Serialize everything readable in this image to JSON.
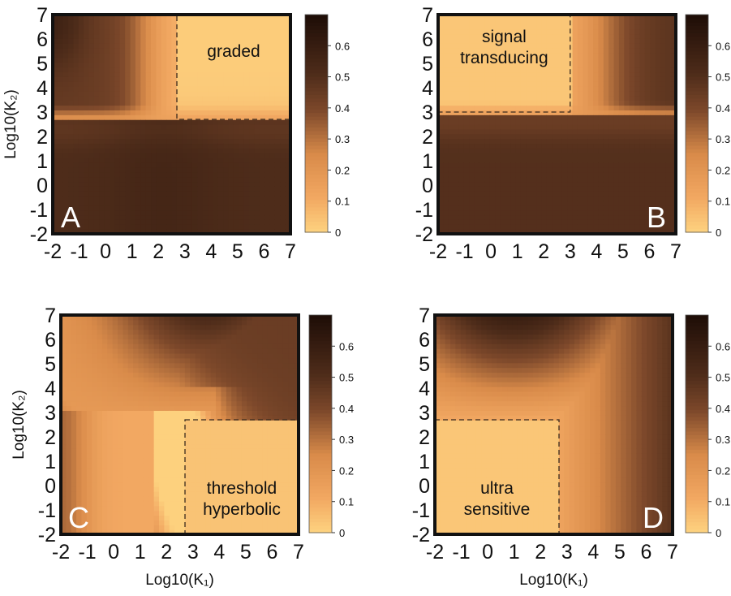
{
  "figure": {
    "colors": {
      "low": "#fdd17e",
      "mid": "#d98b4a",
      "high": "#1c0c06",
      "frame": "#111111",
      "box_line": "#3a2a1e"
    }
  },
  "chart_data": [
    {
      "type": "heatmap",
      "panel_label": "A",
      "region_label": "graded",
      "xlabel": "",
      "ylabel": "Log10(K₂)",
      "xlim": [
        -2,
        7
      ],
      "ylim": [
        -2,
        7
      ],
      "x_ticks": [
        "-2",
        "-1",
        "0",
        "1",
        "2",
        "3",
        "4",
        "5",
        "6",
        "7"
      ],
      "y_ticks": [
        "-2",
        "-1",
        "0",
        "1",
        "2",
        "3",
        "4",
        "5",
        "6",
        "7"
      ],
      "dashed_region": {
        "x": [
          2.7,
          7
        ],
        "y": [
          2.7,
          7
        ]
      },
      "colorbar": {
        "range": [
          0,
          0.7
        ],
        "ticks": [
          "0",
          "0.1",
          "0.2",
          "0.3",
          "0.4",
          "0.5",
          "0.6"
        ]
      }
    },
    {
      "type": "heatmap",
      "panel_label": "B",
      "region_label": [
        "signal",
        "transducing"
      ],
      "xlabel": "",
      "ylabel": "",
      "xlim": [
        -2,
        7
      ],
      "ylim": [
        -2,
        7
      ],
      "x_ticks": [
        "-2",
        "-1",
        "0",
        "1",
        "2",
        "3",
        "4",
        "5",
        "6",
        "7"
      ],
      "y_ticks": [
        "-2",
        "-1",
        "0",
        "1",
        "2",
        "3",
        "4",
        "5",
        "6",
        "7"
      ],
      "dashed_region": {
        "x": [
          -2,
          3
        ],
        "y": [
          3,
          7
        ]
      },
      "colorbar": {
        "range": [
          0,
          0.7
        ],
        "ticks": [
          "0",
          "0.1",
          "0.2",
          "0.3",
          "0.4",
          "0.5",
          "0.6"
        ]
      }
    },
    {
      "type": "heatmap",
      "panel_label": "C",
      "region_label": [
        "threshold",
        "hyperbolic"
      ],
      "xlabel": "Log10(K₁)",
      "ylabel": "Log10(K₂)",
      "xlim": [
        -2,
        7
      ],
      "ylim": [
        -2,
        7
      ],
      "x_ticks": [
        "-2",
        "-1",
        "0",
        "1",
        "2",
        "3",
        "4",
        "5",
        "6",
        "7"
      ],
      "y_ticks": [
        "-2",
        "-1",
        "0",
        "1",
        "2",
        "3",
        "4",
        "5",
        "6",
        "7"
      ],
      "dashed_region": {
        "x": [
          2.7,
          7
        ],
        "y": [
          -2,
          2.7
        ]
      },
      "colorbar": {
        "range": [
          0,
          0.7
        ],
        "ticks": [
          "0",
          "0.1",
          "0.2",
          "0.3",
          "0.4",
          "0.5",
          "0.6"
        ]
      }
    },
    {
      "type": "heatmap",
      "panel_label": "D",
      "region_label": [
        "ultra",
        "sensitive"
      ],
      "xlabel": "Log10(K₁)",
      "ylabel": "",
      "xlim": [
        -2,
        7
      ],
      "ylim": [
        -2,
        7
      ],
      "x_ticks": [
        "-2",
        "-1",
        "0",
        "1",
        "2",
        "3",
        "4",
        "5",
        "6",
        "7"
      ],
      "y_ticks": [
        "-2",
        "-1",
        "0",
        "1",
        "2",
        "3",
        "4",
        "5",
        "6",
        "7"
      ],
      "dashed_region": {
        "x": [
          -2,
          2.7
        ],
        "y": [
          -2,
          2.7
        ]
      },
      "colorbar": {
        "range": [
          0,
          0.7
        ],
        "ticks": [
          "0",
          "0.1",
          "0.2",
          "0.3",
          "0.4",
          "0.5",
          "0.6"
        ]
      }
    }
  ]
}
